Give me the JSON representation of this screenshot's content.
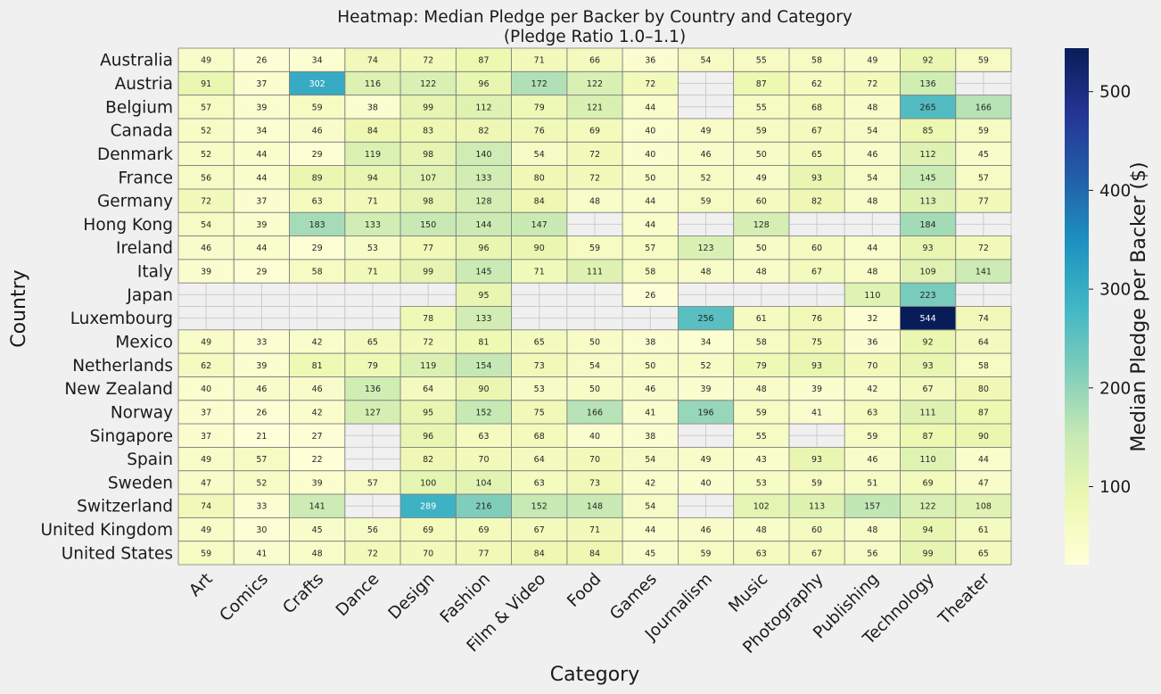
{
  "chart_data": {
    "type": "heatmap",
    "title": "Heatmap: Median Pledge per Backer by Country and Category",
    "subtitle": "(Pledge Ratio 1.0–1.1)",
    "xlabel": "Category",
    "ylabel": "Country",
    "colorbar_label": "Median Pledge per Backer ($)",
    "colormap": "YlGnBu",
    "colorbar_range": [
      21,
      544
    ],
    "colorbar_ticks": [
      100,
      200,
      300,
      400,
      500
    ],
    "missing_color": "#f0f0f0",
    "grid_color": "#808080",
    "categories": [
      "Art",
      "Comics",
      "Crafts",
      "Dance",
      "Design",
      "Fashion",
      "Film & Video",
      "Food",
      "Games",
      "Journalism",
      "Music",
      "Photography",
      "Publishing",
      "Technology",
      "Theater"
    ],
    "countries": [
      "Australia",
      "Austria",
      "Belgium",
      "Canada",
      "Denmark",
      "France",
      "Germany",
      "Hong Kong",
      "Ireland",
      "Italy",
      "Japan",
      "Luxembourg",
      "Mexico",
      "Netherlands ",
      "New Zealand",
      "Norway",
      "Singapore",
      "Spain",
      "Sweden",
      "Switzerland",
      "United Kingdom",
      "United States"
    ],
    "values": [
      [
        49,
        26,
        34,
        74,
        72,
        87,
        71,
        66,
        36,
        54,
        55,
        58,
        49,
        92,
        59
      ],
      [
        91,
        37,
        302,
        116,
        122,
        96,
        172,
        122,
        72,
        null,
        87,
        62,
        72,
        136,
        null
      ],
      [
        57,
        39,
        59,
        38,
        99,
        112,
        79,
        121,
        44,
        null,
        55,
        68,
        48,
        265,
        166
      ],
      [
        52,
        34,
        46,
        84,
        83,
        82,
        76,
        69,
        40,
        49,
        59,
        67,
        54,
        85,
        59
      ],
      [
        52,
        44,
        29,
        119,
        98,
        140,
        54,
        72,
        40,
        46,
        50,
        65,
        46,
        112,
        45
      ],
      [
        56,
        44,
        89,
        94,
        107,
        133,
        80,
        72,
        50,
        52,
        49,
        93,
        54,
        145,
        57
      ],
      [
        72,
        37,
        63,
        71,
        98,
        128,
        84,
        48,
        44,
        59,
        60,
        82,
        48,
        113,
        77
      ],
      [
        54,
        39,
        183,
        133,
        150,
        144,
        147,
        null,
        44,
        null,
        128,
        null,
        null,
        184,
        null
      ],
      [
        46,
        44,
        29,
        53,
        77,
        96,
        90,
        59,
        57,
        123,
        50,
        60,
        44,
        93,
        72
      ],
      [
        39,
        29,
        58,
        71,
        99,
        145,
        71,
        111,
        58,
        48,
        48,
        67,
        48,
        109,
        141
      ],
      [
        null,
        null,
        null,
        null,
        null,
        95,
        null,
        null,
        26,
        null,
        null,
        null,
        110,
        223,
        null
      ],
      [
        null,
        null,
        null,
        null,
        78,
        133,
        null,
        null,
        null,
        256,
        61,
        76,
        32,
        544,
        74
      ],
      [
        49,
        33,
        42,
        65,
        72,
        81,
        65,
        50,
        38,
        34,
        58,
        75,
        36,
        92,
        64
      ],
      [
        62,
        39,
        81,
        79,
        119,
        154,
        73,
        54,
        50,
        52,
        79,
        93,
        70,
        93,
        58
      ],
      [
        40,
        46,
        46,
        136,
        64,
        90,
        53,
        50,
        46,
        39,
        48,
        39,
        42,
        67,
        80
      ],
      [
        37,
        26,
        42,
        127,
        95,
        152,
        75,
        166,
        41,
        196,
        59,
        41,
        63,
        111,
        87
      ],
      [
        37,
        21,
        27,
        null,
        96,
        63,
        68,
        40,
        38,
        null,
        55,
        null,
        59,
        87,
        90
      ],
      [
        49,
        57,
        22,
        null,
        82,
        70,
        64,
        70,
        54,
        49,
        43,
        93,
        46,
        110,
        44
      ],
      [
        47,
        52,
        39,
        57,
        100,
        104,
        63,
        73,
        42,
        40,
        53,
        59,
        51,
        69,
        47
      ],
      [
        74,
        33,
        141,
        null,
        289,
        216,
        152,
        148,
        54,
        null,
        102,
        113,
        157,
        122,
        108
      ],
      [
        49,
        30,
        45,
        56,
        69,
        69,
        67,
        71,
        44,
        46,
        48,
        60,
        48,
        94,
        61
      ],
      [
        59,
        41,
        48,
        72,
        70,
        77,
        84,
        84,
        45,
        59,
        63,
        67,
        56,
        99,
        65
      ]
    ]
  }
}
